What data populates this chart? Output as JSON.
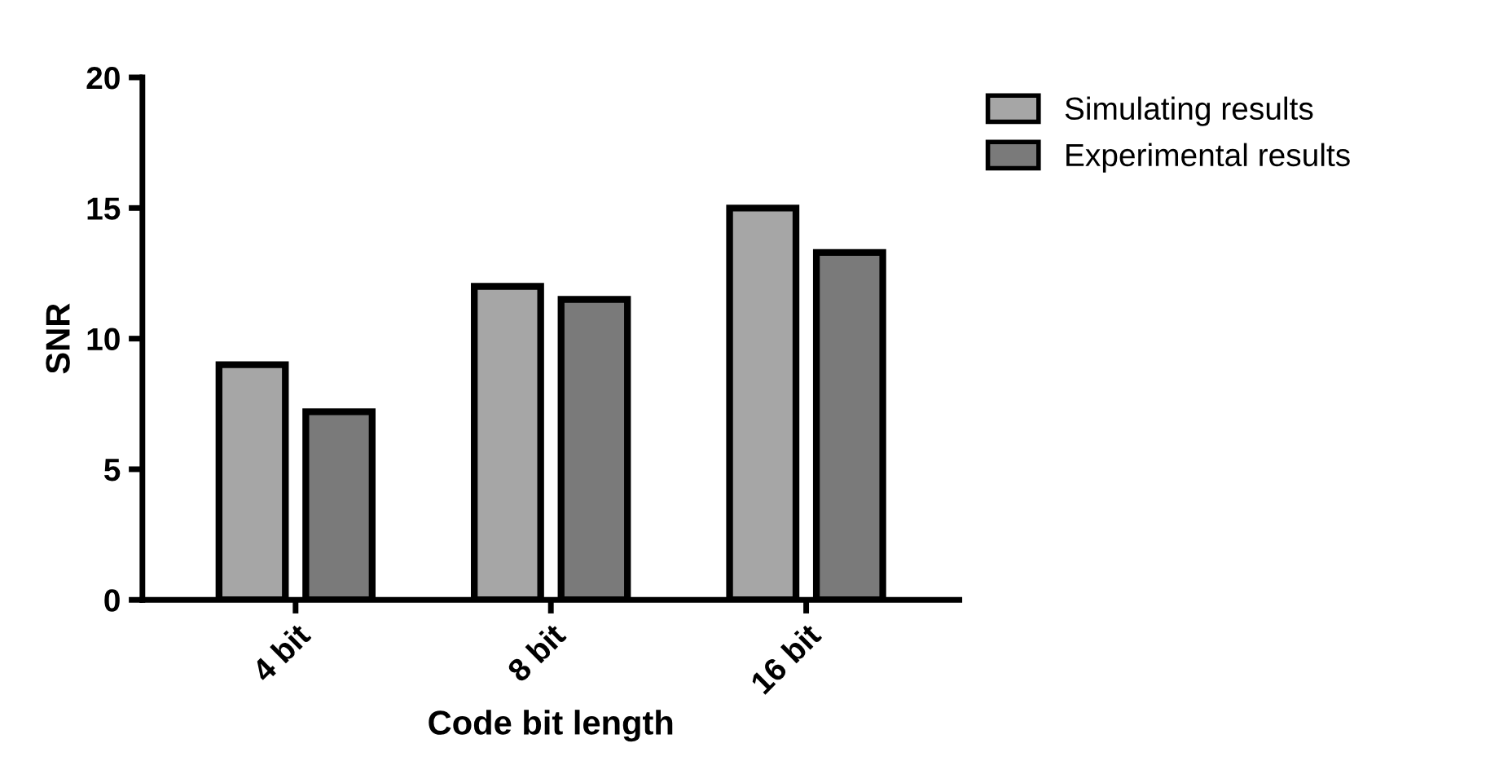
{
  "chart_data": {
    "type": "bar",
    "xlabel": "Code bit length",
    "ylabel": "SNR",
    "categories": [
      "4 bit",
      "8 bit",
      "16 bit"
    ],
    "series": [
      {
        "name": "Simulating results",
        "color": "#a6a6a6",
        "values": [
          9.0,
          12.0,
          15.0
        ]
      },
      {
        "name": "Experimental results",
        "color": "#7a7a7a",
        "values": [
          7.2,
          11.5,
          13.3
        ]
      }
    ],
    "ylim": [
      0,
      20
    ],
    "yticks": [
      0,
      5,
      10,
      15,
      20
    ],
    "grid": false,
    "legend": "top right"
  }
}
